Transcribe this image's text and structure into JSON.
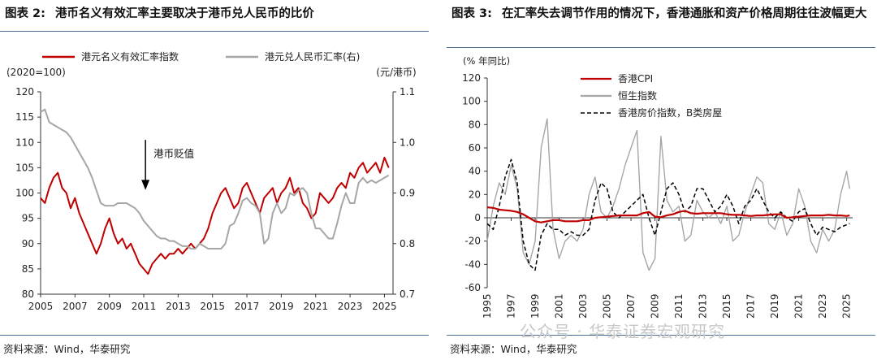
{
  "left": {
    "figure_label": "图表 2:",
    "title": "港币名义有效汇率主要取决于港币兑人民币的比价",
    "source": "资料来源：Wind，华泰研究",
    "chart_data": {
      "type": "line",
      "unit_left": "(2020=100)",
      "unit_right": "(元/港币)",
      "annotation": "港币贬值",
      "x_ticks": [
        "2005",
        "2007",
        "2009",
        "2011",
        "2013",
        "2015",
        "2017",
        "2019",
        "2021",
        "2023",
        "2025"
      ],
      "ylim_left": [
        80,
        120
      ],
      "yticks_left": [
        "80",
        "85",
        "90",
        "95",
        "100",
        "105",
        "110",
        "115",
        "120"
      ],
      "ylim_right": [
        0.7,
        1.1
      ],
      "yticks_right": [
        "0.7",
        "0.8",
        "0.9",
        "1.0",
        "1.1"
      ],
      "series": [
        {
          "name": "港元名义有效汇率指数",
          "axis": "left",
          "color": "#c00000",
          "x": [
            2005.0,
            2005.25,
            2005.5,
            2005.75,
            2006.0,
            2006.25,
            2006.5,
            2006.75,
            2007.0,
            2007.25,
            2007.5,
            2007.75,
            2008.0,
            2008.25,
            2008.5,
            2008.75,
            2009.0,
            2009.25,
            2009.5,
            2009.75,
            2010.0,
            2010.25,
            2010.5,
            2010.75,
            2011.0,
            2011.25,
            2011.5,
            2011.75,
            2012.0,
            2012.25,
            2012.5,
            2012.75,
            2013.0,
            2013.25,
            2013.5,
            2013.75,
            2014.0,
            2014.25,
            2014.5,
            2014.75,
            2015.0,
            2015.25,
            2015.5,
            2015.75,
            2016.0,
            2016.25,
            2016.5,
            2016.75,
            2017.0,
            2017.25,
            2017.5,
            2017.75,
            2018.0,
            2018.25,
            2018.5,
            2018.75,
            2019.0,
            2019.25,
            2019.5,
            2019.75,
            2020.0,
            2020.25,
            2020.5,
            2020.75,
            2021.0,
            2021.25,
            2021.5,
            2021.75,
            2022.0,
            2022.25,
            2022.5,
            2022.75,
            2023.0,
            2023.25,
            2023.5,
            2023.75,
            2024.0,
            2024.25,
            2024.5,
            2024.75,
            2025.0,
            2025.25
          ],
          "values": [
            99,
            98,
            101,
            103,
            104,
            101,
            100,
            97,
            99,
            96,
            94,
            92,
            90,
            88,
            90,
            93,
            95,
            92,
            90,
            91,
            89,
            90,
            88,
            86,
            85,
            84,
            86,
            87,
            88,
            87,
            88,
            88,
            89,
            88,
            89,
            90,
            89,
            90,
            91,
            93,
            96,
            98,
            100,
            101,
            99,
            97,
            98,
            101,
            102,
            100,
            98,
            96,
            99,
            100,
            101,
            98,
            100,
            101,
            103,
            100,
            101,
            98,
            97,
            95,
            96,
            100,
            99,
            98,
            99,
            101,
            102,
            101,
            104,
            103,
            105,
            106,
            104,
            105,
            106,
            104,
            107,
            105
          ]
        },
        {
          "name": "港元兑人民币汇率(右)",
          "axis": "right",
          "color": "#a6a6a6",
          "x": [
            2005.0,
            2005.25,
            2005.5,
            2005.75,
            2006.0,
            2006.25,
            2006.5,
            2006.75,
            2007.0,
            2007.25,
            2007.5,
            2007.75,
            2008.0,
            2008.25,
            2008.5,
            2008.75,
            2009.0,
            2009.25,
            2009.5,
            2009.75,
            2010.0,
            2010.25,
            2010.5,
            2010.75,
            2011.0,
            2011.25,
            2011.5,
            2011.75,
            2012.0,
            2012.25,
            2012.5,
            2012.75,
            2013.0,
            2013.25,
            2013.5,
            2013.75,
            2014.0,
            2014.25,
            2014.5,
            2014.75,
            2015.0,
            2015.25,
            2015.5,
            2015.75,
            2016.0,
            2016.25,
            2016.5,
            2016.75,
            2017.0,
            2017.25,
            2017.5,
            2017.75,
            2018.0,
            2018.25,
            2018.5,
            2018.75,
            2019.0,
            2019.25,
            2019.5,
            2019.75,
            2020.0,
            2020.25,
            2020.5,
            2020.75,
            2021.0,
            2021.25,
            2021.5,
            2021.75,
            2022.0,
            2022.25,
            2022.5,
            2022.75,
            2023.0,
            2023.25,
            2023.5,
            2023.75,
            2024.0,
            2024.25,
            2024.5,
            2024.75,
            2025.0,
            2025.25
          ],
          "values": [
            1.06,
            1.065,
            1.04,
            1.035,
            1.03,
            1.025,
            1.02,
            1.01,
            0.995,
            0.98,
            0.965,
            0.95,
            0.93,
            0.905,
            0.88,
            0.875,
            0.875,
            0.875,
            0.88,
            0.88,
            0.88,
            0.875,
            0.87,
            0.86,
            0.845,
            0.835,
            0.825,
            0.815,
            0.81,
            0.81,
            0.805,
            0.805,
            0.8,
            0.795,
            0.795,
            0.79,
            0.79,
            0.8,
            0.795,
            0.79,
            0.79,
            0.79,
            0.79,
            0.8,
            0.835,
            0.84,
            0.86,
            0.885,
            0.89,
            0.88,
            0.875,
            0.86,
            0.8,
            0.81,
            0.86,
            0.88,
            0.86,
            0.87,
            0.9,
            0.895,
            0.905,
            0.91,
            0.9,
            0.86,
            0.83,
            0.83,
            0.82,
            0.81,
            0.81,
            0.84,
            0.875,
            0.9,
            0.88,
            0.88,
            0.92,
            0.93,
            0.92,
            0.925,
            0.92,
            0.925,
            0.93,
            0.935
          ]
        }
      ]
    }
  },
  "right": {
    "figure_label": "图表 3:",
    "title": "在汇率失去调节作用的情况下，香港通胀和资产价格周期往往波幅更大",
    "source": "资料来源：Wind，华泰研究",
    "watermark": "公众号 · 华泰证券宏观研究",
    "chart_data": {
      "type": "line",
      "unit": "(% 年同比)",
      "x_ticks": [
        "1995",
        "1997",
        "1999",
        "2001",
        "2003",
        "2005",
        "2007",
        "2009",
        "2011",
        "2013",
        "2015",
        "2017",
        "2019",
        "2021",
        "2023",
        "2025"
      ],
      "ylim": [
        -60,
        120
      ],
      "yticks": [
        "-60",
        "-40",
        "-20",
        "0",
        "20",
        "40",
        "60",
        "80",
        "100",
        "120"
      ],
      "series": [
        {
          "name": "香港CPI",
          "color": "#c00000",
          "style": "solid",
          "x": [
            1995,
            1995.5,
            1996,
            1996.5,
            1997,
            1997.5,
            1998,
            1998.5,
            1999,
            1999.5,
            2000,
            2000.5,
            2001,
            2001.5,
            2002,
            2002.5,
            2003,
            2003.5,
            2004,
            2004.5,
            2005,
            2005.5,
            2006,
            2006.5,
            2007,
            2007.5,
            2008,
            2008.5,
            2009,
            2009.5,
            2010,
            2010.5,
            2011,
            2011.5,
            2012,
            2012.5,
            2013,
            2013.5,
            2014,
            2014.5,
            2015,
            2015.5,
            2016,
            2016.5,
            2017,
            2017.5,
            2018,
            2018.5,
            2019,
            2019.5,
            2020,
            2020.5,
            2021,
            2021.5,
            2022,
            2022.5,
            2023,
            2023.5,
            2024,
            2024.5,
            2025,
            2025.25
          ],
          "values": [
            9,
            8.5,
            7,
            6.5,
            6,
            5,
            3,
            0,
            -3,
            -4,
            -3,
            -2,
            -2,
            -3,
            -3,
            -3,
            -2,
            -2,
            0,
            0.5,
            1,
            1.5,
            2,
            2,
            2,
            2,
            4,
            5,
            1,
            0.5,
            2,
            3,
            5,
            6,
            4,
            3.5,
            4,
            4,
            4,
            4,
            3,
            2.5,
            2.5,
            2,
            1.5,
            2,
            2,
            2.5,
            3,
            3,
            0,
            0.5,
            1,
            1.5,
            2,
            2,
            2,
            2.5,
            2,
            2,
            1.5,
            2
          ]
        },
        {
          "name": "恒生指数",
          "color": "#a6a6a6",
          "style": "solid",
          "x": [
            1995,
            1995.5,
            1996,
            1996.5,
            1997,
            1997.5,
            1998,
            1998.5,
            1999,
            1999.5,
            2000,
            2000.5,
            2001,
            2001.5,
            2002,
            2002.5,
            2003,
            2003.5,
            2004,
            2004.5,
            2005,
            2005.5,
            2006,
            2006.5,
            2007,
            2007.5,
            2008,
            2008.5,
            2009,
            2009.5,
            2010,
            2010.5,
            2011,
            2011.5,
            2012,
            2012.5,
            2013,
            2013.5,
            2014,
            2014.5,
            2015,
            2015.5,
            2016,
            2016.5,
            2017,
            2017.5,
            2018,
            2018.5,
            2019,
            2019.5,
            2020,
            2020.5,
            2021,
            2021.5,
            2022,
            2022.5,
            2023,
            2023.5,
            2024,
            2024.5,
            2025,
            2025.25
          ],
          "values": [
            -20,
            10,
            30,
            20,
            45,
            25,
            -30,
            -40,
            -20,
            60,
            85,
            -10,
            -35,
            -20,
            -15,
            -20,
            -10,
            20,
            35,
            5,
            0,
            10,
            25,
            45,
            60,
            75,
            -30,
            -45,
            -35,
            70,
            15,
            5,
            10,
            -20,
            -15,
            15,
            5,
            0,
            5,
            -5,
            10,
            -20,
            -15,
            5,
            20,
            35,
            30,
            -5,
            -10,
            5,
            -15,
            -5,
            25,
            10,
            -20,
            -30,
            -10,
            -20,
            -10,
            20,
            40,
            25
          ]
        },
        {
          "name": "香港房价指数，B类房屋",
          "color": "#000000",
          "style": "dashed",
          "x": [
            1995,
            1995.5,
            1996,
            1996.5,
            1997,
            1997.5,
            1998,
            1998.5,
            1999,
            1999.5,
            2000,
            2000.5,
            2001,
            2001.5,
            2002,
            2002.5,
            2003,
            2003.5,
            2004,
            2004.5,
            2005,
            2005.5,
            2006,
            2006.5,
            2007,
            2007.5,
            2008,
            2008.5,
            2009,
            2009.5,
            2010,
            2010.5,
            2011,
            2011.5,
            2012,
            2012.5,
            2013,
            2013.5,
            2014,
            2014.5,
            2015,
            2015.5,
            2016,
            2016.5,
            2017,
            2017.5,
            2018,
            2018.5,
            2019,
            2019.5,
            2020,
            2020.5,
            2021,
            2021.5,
            2022,
            2022.5,
            2023,
            2023.5,
            2024,
            2024.5,
            2025,
            2025.25
          ],
          "values": [
            -5,
            -10,
            10,
            35,
            50,
            30,
            -20,
            -40,
            -45,
            -15,
            -5,
            -10,
            -10,
            -15,
            -12,
            -15,
            -15,
            -10,
            15,
            30,
            25,
            5,
            0,
            5,
            10,
            15,
            20,
            0,
            -15,
            5,
            25,
            30,
            20,
            5,
            10,
            25,
            25,
            15,
            5,
            10,
            20,
            10,
            -5,
            10,
            15,
            25,
            15,
            5,
            0,
            5,
            0,
            -3,
            5,
            8,
            -5,
            -15,
            -8,
            -10,
            -12,
            -8,
            -6,
            -5
          ]
        }
      ]
    }
  }
}
